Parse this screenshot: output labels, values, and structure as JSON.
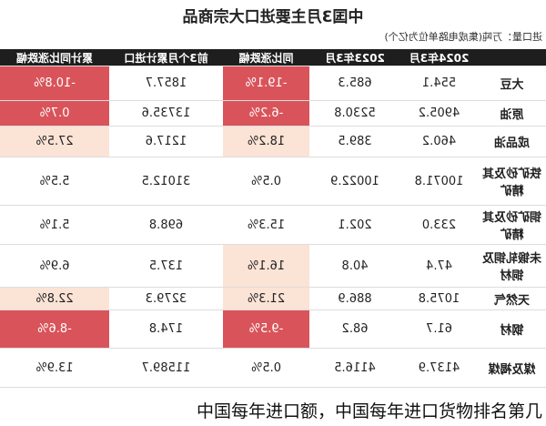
{
  "title": "中国3月主要进口大宗商品",
  "subtitle": "进口量：万吨(集成电路单位为亿个)",
  "table": {
    "header": [
      "",
      "2024年3月",
      "2023年3月",
      "同比涨跌幅",
      "前3个月累计进口",
      "累计同比涨跌幅"
    ],
    "rows": [
      [
        "大豆",
        "554.1",
        "685.3",
        "-19.1%",
        "1857.7",
        "-10.8%"
      ],
      [
        "原油",
        "4905.2",
        "5230.8",
        "-6.2%",
        "13735.6",
        "0.7%"
      ],
      [
        "成品油",
        "460.2",
        "389.5",
        "18.2%",
        "1217.6",
        "27.5%"
      ],
      [
        "铁矿砂及其精矿",
        "10071.8",
        "10022.9",
        "0.5%",
        "31012.5",
        "5.5%"
      ],
      [
        "铜矿砂及其精矿",
        "233.0",
        "202.1",
        "15.3%",
        "698.8",
        "5.1%"
      ],
      [
        "未锻轧铜及铜材",
        "47.4",
        "40.8",
        "16.1%",
        "137.5",
        "6.9%"
      ],
      [
        "天然气",
        "1075.8",
        "886.9",
        "21.3%",
        "3279.3",
        "22.8%"
      ],
      [
        "钢材",
        "61.7",
        "68.2",
        "-9.5%",
        "174.8",
        "-8.6%"
      ],
      [
        "煤及褐煤",
        "4137.9",
        "4116.5",
        "0.5%",
        "11589.7",
        "13.9%"
      ]
    ]
  },
  "caption": "中国每年进口额，中国每年进口货物排名第几"
}
